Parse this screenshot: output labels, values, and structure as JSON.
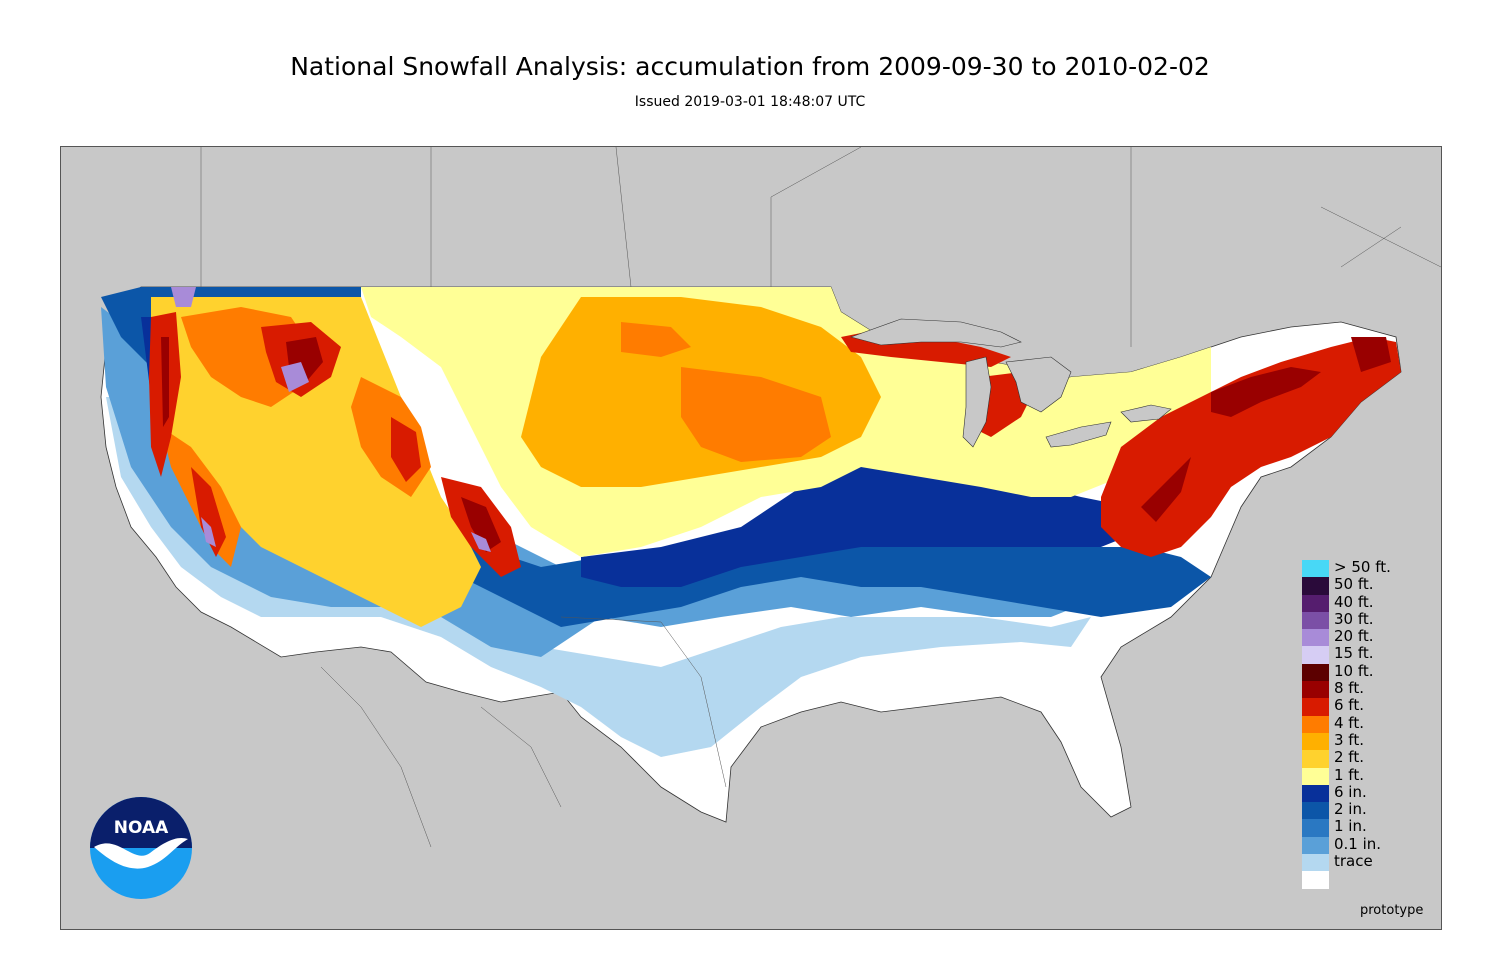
{
  "title": "National Snowfall Analysis: accumulation from 2009-09-30 to 2010-02-02",
  "subtitle": "Issued 2019-03-01 18:48:07 UTC",
  "footer_note": "prototype",
  "logo": {
    "text": "NOAA",
    "colors": {
      "top": "#0a1f6b",
      "bottom": "#1a9ef0",
      "gull": "#ffffff"
    }
  },
  "map": {
    "background_color": "#c8c8c8",
    "nodata_color": "#ffffff",
    "region": "Contiguous United States"
  },
  "legend": [
    {
      "label": "> 50 ft.",
      "color": "#48d8f6"
    },
    {
      "label": "50 ft.",
      "color": "#2a0a3a"
    },
    {
      "label": "40 ft.",
      "color": "#551d6e"
    },
    {
      "label": "30 ft.",
      "color": "#7b4fa6"
    },
    {
      "label": "20 ft.",
      "color": "#a88bd8"
    },
    {
      "label": "15 ft.",
      "color": "#d6cdf4"
    },
    {
      "label": "10 ft.",
      "color": "#5c0000"
    },
    {
      "label": "8 ft.",
      "color": "#990000"
    },
    {
      "label": "6 ft.",
      "color": "#d81b00"
    },
    {
      "label": "4 ft.",
      "color": "#ff7c00"
    },
    {
      "label": "3 ft.",
      "color": "#ffb000"
    },
    {
      "label": "2 ft.",
      "color": "#ffd22e"
    },
    {
      "label": "1 ft.",
      "color": "#ffff96"
    },
    {
      "label": "6 in.",
      "color": "#08309a"
    },
    {
      "label": "2 in.",
      "color": "#0c56a8"
    },
    {
      "label": "1 in.",
      "color": "#2a78c2"
    },
    {
      "label": "0.1 in.",
      "color": "#5aa0d8"
    },
    {
      "label": "trace",
      "color": "#b4d8f0"
    },
    {
      "label": "",
      "color": "#ffffff"
    }
  ]
}
